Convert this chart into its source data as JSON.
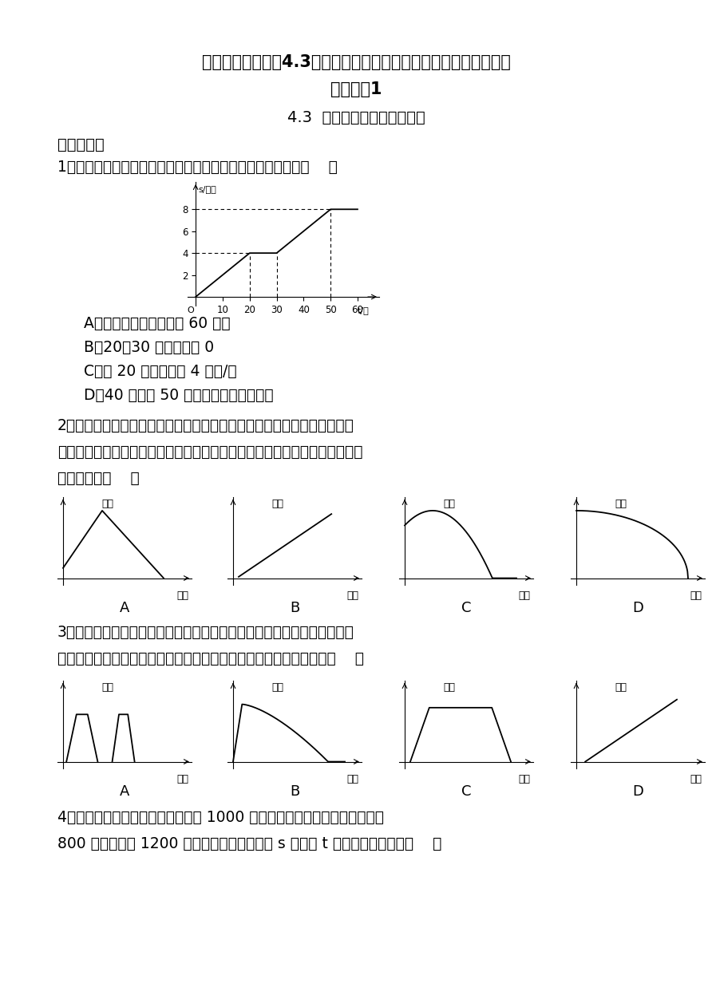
{
  "title1": "七年级数学下册《4.3用图象表示的变量间关系》第二课时同步练习",
  "title2": "题及答案1",
  "title3": "4.3  用图象表示的变量间关系",
  "section1": "一、选择题",
  "q1": "1．如图是某人骑自行车出行的图象，从图象中得知正确信息（    ）",
  "q1_options": [
    "A．从起点到终点共用了 60 分钟",
    "B．20～30 分时速度为 0",
    "C．前 20 分钟速度为 4 千米/时",
    "D．40 分钟与 50 分钟时速度是不相同的"
  ],
  "q2_text1": "2．同学们，你们喜欢打篮球吗？你还记得投篮时篮球出手后在空中飞行的",
  "q2_text2": "路线吗？那就请你选一下哪幅图可以反映出篮球的离地高度与投出后的时间之",
  "q2_text3": "间的关系？（    ）",
  "q3_text1": "3．小明一出校门先加速行驶，然后匀速行驶一段后，在距家门不远的地方",
  "q3_text2": "开始减速，而最后停下，下面哪一副图可以近似地刻画出以上情况：（    ）",
  "q4_text1": "4．小李骑车沿直线旅行，先前进了 1000 米，休息了一段时间，又原路返回",
  "q4_text2": "800 米，再前进 1200 米，则他离起点的距离 s 与时间 t 的关系示意图是：（    ）",
  "bg_color": "#ffffff",
  "text_color": "#000000",
  "line_color": "#000000"
}
